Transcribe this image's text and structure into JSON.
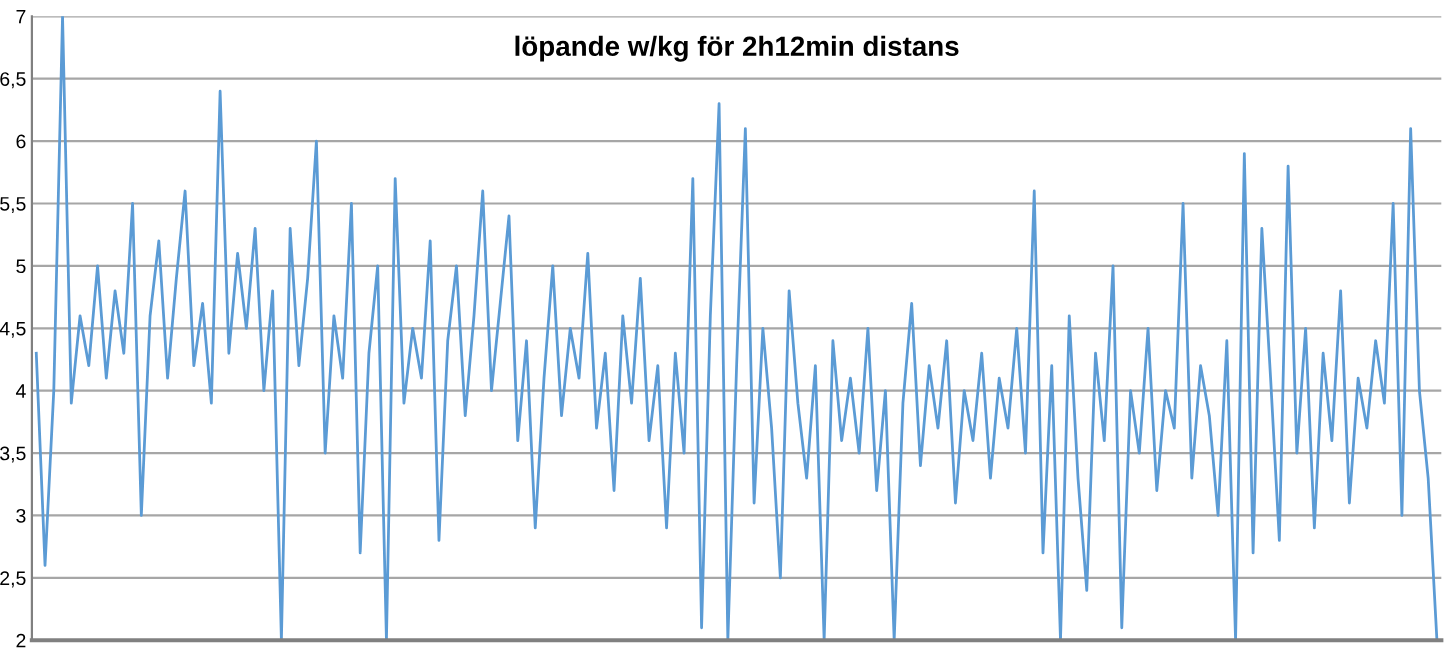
{
  "chart_data": {
    "type": "line",
    "title": "löpande w/kg för 2h12min distans",
    "categories": [
      null,
      null,
      null,
      null,
      null,
      null,
      null,
      null,
      null,
      null,
      null,
      null,
      null,
      null,
      null,
      null,
      null,
      null,
      null,
      null,
      null,
      null,
      null,
      null,
      null,
      null,
      null,
      null,
      null,
      null,
      null,
      null,
      null,
      null,
      null,
      null,
      null,
      null,
      null,
      null,
      null,
      null,
      null,
      null,
      null,
      null,
      null,
      null,
      null,
      null,
      null,
      null,
      null,
      null,
      null,
      null,
      null,
      null,
      null,
      null,
      null,
      null,
      null,
      null,
      null,
      null,
      null,
      null,
      null,
      null,
      null,
      null,
      null,
      null,
      null,
      null,
      null,
      null,
      null,
      null,
      null,
      null,
      null,
      null,
      null,
      null,
      null,
      null,
      null,
      null,
      null,
      null,
      null,
      null,
      null,
      null,
      null,
      null,
      null,
      null,
      null,
      null,
      null,
      null,
      null,
      null,
      null,
      null,
      null,
      null,
      null,
      null,
      null,
      null,
      null,
      null,
      null,
      null,
      null,
      null,
      null,
      null,
      null,
      null,
      null,
      null,
      null,
      null,
      null,
      null,
      null,
      null,
      null,
      null,
      null,
      null,
      null,
      null,
      null,
      null,
      null,
      null,
      null,
      null,
      null,
      null,
      null,
      null,
      null,
      null,
      null,
      null,
      null,
      null,
      null,
      null,
      null,
      null,
      null,
      null,
      null
    ],
    "values": [
      4.3,
      2.6,
      4.0,
      7.0,
      3.9,
      4.6,
      4.2,
      5.0,
      4.1,
      4.8,
      4.3,
      5.5,
      3.0,
      4.6,
      5.2,
      4.1,
      4.9,
      5.6,
      4.2,
      4.7,
      3.9,
      6.4,
      4.3,
      5.1,
      4.5,
      5.3,
      4.0,
      4.8,
      2.0,
      5.3,
      4.2,
      4.9,
      6.0,
      3.5,
      4.6,
      4.1,
      5.5,
      2.7,
      4.3,
      5.0,
      2.0,
      5.7,
      3.9,
      4.5,
      4.1,
      5.2,
      2.8,
      4.4,
      5.0,
      3.8,
      4.6,
      5.6,
      4.0,
      4.7,
      5.4,
      3.6,
      4.4,
      2.9,
      4.1,
      5.0,
      3.8,
      4.5,
      4.1,
      5.1,
      3.7,
      4.3,
      3.2,
      4.6,
      3.9,
      4.9,
      3.6,
      4.2,
      2.9,
      4.3,
      3.5,
      5.7,
      2.1,
      4.6,
      6.3,
      2.0,
      4.2,
      6.1,
      3.1,
      4.5,
      3.7,
      2.5,
      4.8,
      3.9,
      3.3,
      4.2,
      2.0,
      4.4,
      3.6,
      4.1,
      3.5,
      4.5,
      3.2,
      4.0,
      2.0,
      3.9,
      4.7,
      3.4,
      4.2,
      3.7,
      4.4,
      3.1,
      4.0,
      3.6,
      4.3,
      3.3,
      4.1,
      3.7,
      4.5,
      3.5,
      5.6,
      2.7,
      4.2,
      2.0,
      4.6,
      3.3,
      2.4,
      4.3,
      3.6,
      5.0,
      2.1,
      4.0,
      3.5,
      4.5,
      3.2,
      4.0,
      3.7,
      5.5,
      3.3,
      4.2,
      3.8,
      3.0,
      4.4,
      2.0,
      5.9,
      2.7,
      5.3,
      4.1,
      2.8,
      5.8,
      3.5,
      4.5,
      2.9,
      4.3,
      3.6,
      4.8,
      3.1,
      4.1,
      3.7,
      4.4,
      3.9,
      5.5,
      3.0,
      6.1,
      4.0,
      3.3,
      2.0
    ],
    "color": "#5b9bd5",
    "ylim": [
      2,
      7
    ],
    "yticks": [
      2,
      {
        "value": 2.5,
        "label": "2,5"
      },
      3,
      {
        "value": 3.5,
        "label": "3,5"
      },
      4,
      {
        "value": 4.5,
        "label": "4,5"
      },
      5,
      {
        "value": 5.5,
        "label": "5,5"
      },
      6,
      {
        "value": 6.5,
        "label": "6,5"
      },
      7
    ],
    "grid": "y",
    "tick_labels": "y",
    "marker": "none",
    "line_style": "solid",
    "legend": false
  }
}
